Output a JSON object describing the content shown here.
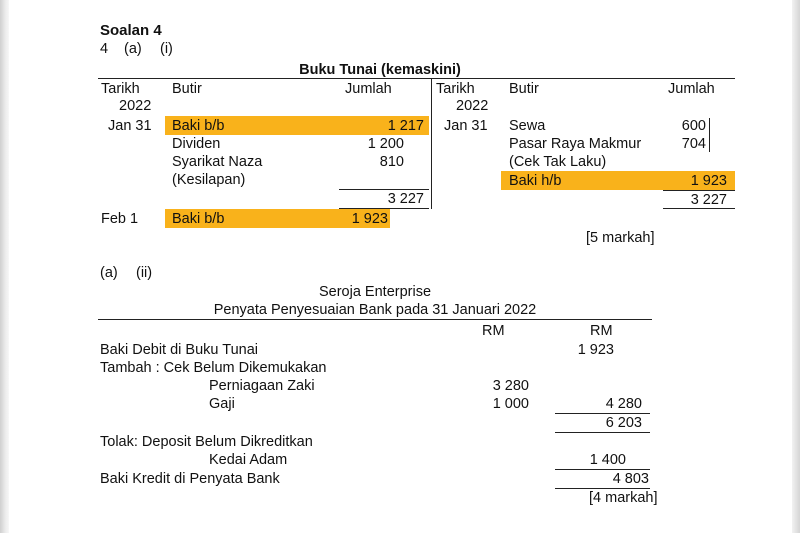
{
  "heading": {
    "title": "Soalan 4",
    "number": "4",
    "part_a": "(a)",
    "part_i": "(i)"
  },
  "cash_book": {
    "title": "Buku Tunai (kemaskini)",
    "debit": {
      "col_date": "Tarikh",
      "col_year": "2022",
      "col_desc": "Butir",
      "col_amount": "Jumlah",
      "date_jan": "Jan 31",
      "rows": [
        {
          "desc": "Baki b/b",
          "amount": "1 217"
        },
        {
          "desc": "Dividen",
          "amount": "1 200"
        },
        {
          "desc": "Syarikat Naza",
          "amount": "810"
        },
        {
          "desc": "(Kesilapan)",
          "amount": ""
        }
      ],
      "total": "3 227",
      "date_feb": "Feb 1",
      "bd_desc": "Baki b/b",
      "bd_amount": "1 923"
    },
    "credit": {
      "col_date": "Tarikh",
      "col_year": "2022",
      "col_desc": "Butir",
      "col_amount": "Jumlah",
      "date_jan": "Jan 31",
      "rows": [
        {
          "desc": "Sewa",
          "amount": "600"
        },
        {
          "desc": "Pasar Raya Makmur",
          "amount": "704"
        },
        {
          "desc": "(Cek Tak Laku)",
          "amount": ""
        },
        {
          "desc": "Baki h/b",
          "amount": "1 923"
        }
      ],
      "total": "3 227"
    },
    "marks": "[5 markah]"
  },
  "reconciliation": {
    "part_a": "(a)",
    "part_ii": "(ii)",
    "company": "Seroja Enterprise",
    "title": "Penyata Penyesuaian Bank pada 31 Januari 2022",
    "col1": "RM",
    "col2": "RM",
    "debit_balance_label": "Baki Debit di Buku Tunai",
    "debit_balance_value": "1 923",
    "add_label": "Tambah : Cek Belum Dikemukakan",
    "add_items": [
      {
        "label": "Perniagaan Zaki",
        "value": "3 280"
      },
      {
        "label": "Gaji",
        "value": "1 000"
      }
    ],
    "add_total": "4 280",
    "subtotal": "6 203",
    "less_label": "Tolak: Deposit Belum Dikreditkan",
    "less_item_label": "Kedai Adam",
    "less_item_value": "1 400",
    "credit_balance_label": "Baki Kredit di Penyata Bank",
    "credit_balance_value": "4 803",
    "marks": "[4 markah]"
  }
}
